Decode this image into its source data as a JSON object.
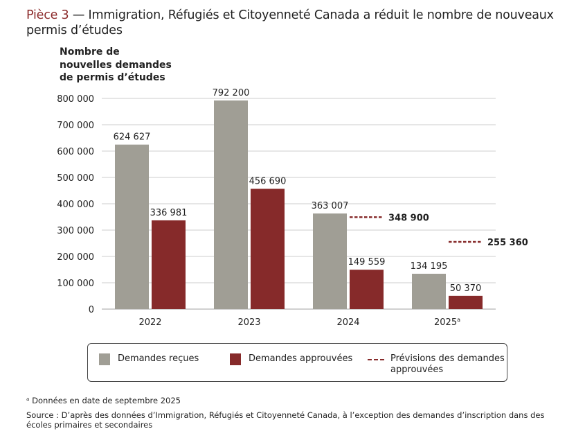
{
  "header": {
    "label": "Pièce 3",
    "title": "— Immigration, Réfugiés et Citoyenneté Canada a réduit le nombre de nouveaux permis d’études"
  },
  "chart_data": {
    "type": "bar",
    "title": "Immigration, Réfugiés et Citoyenneté Canada a réduit le nombre de nouveaux permis d’études",
    "ylabel_lines": [
      "Nombre de",
      "nouvelles demandes",
      "de permis d’études"
    ],
    "xlabel": "",
    "categories": [
      "2022",
      "2023",
      "2024",
      "2025"
    ],
    "category_superscripts": [
      "",
      "",
      "",
      "a"
    ],
    "ylim": [
      0,
      800000
    ],
    "yticks": [
      0,
      100000,
      200000,
      300000,
      400000,
      500000,
      600000,
      700000,
      800000
    ],
    "ytick_labels": [
      "0",
      "100 000",
      "200 000",
      "300 000",
      "400 000",
      "500 000",
      "600 000",
      "700 000",
      "800 000"
    ],
    "grid": true,
    "series": [
      {
        "name": "Demandes reçues",
        "color": "#a09e95",
        "values": [
          624627,
          792200,
          363007,
          134195
        ],
        "labels": [
          "624 627",
          "792 200",
          "363 007",
          "134 195"
        ]
      },
      {
        "name": "Demandes approuvées",
        "color": "#862a2a",
        "values": [
          336981,
          456690,
          149559,
          50370
        ],
        "labels": [
          "336 981",
          "456 690",
          "149 559",
          "50 370"
        ]
      }
    ],
    "forecast": {
      "name": "Prévisions des demandes approuvées",
      "color": "#862a2a",
      "points": [
        {
          "category": "2024",
          "value": 348900,
          "label": "348 900"
        },
        {
          "category": "2025",
          "value": 255360,
          "label": "255 360"
        }
      ]
    },
    "legend_position": "bottom"
  },
  "legend": {
    "items": [
      {
        "label": "Demandes reçues"
      },
      {
        "label": "Demandes approuvées"
      },
      {
        "label": "Prévisions des demandes approuvées"
      }
    ]
  },
  "footnotes": {
    "a": "ᵃ Données en date de septembre 2025",
    "source": "Source : D’après des données d’Immigration, Réfugiés et Citoyenneté Canada, à l’exception des demandes d’inscription dans des écoles primaires et secondaires"
  }
}
